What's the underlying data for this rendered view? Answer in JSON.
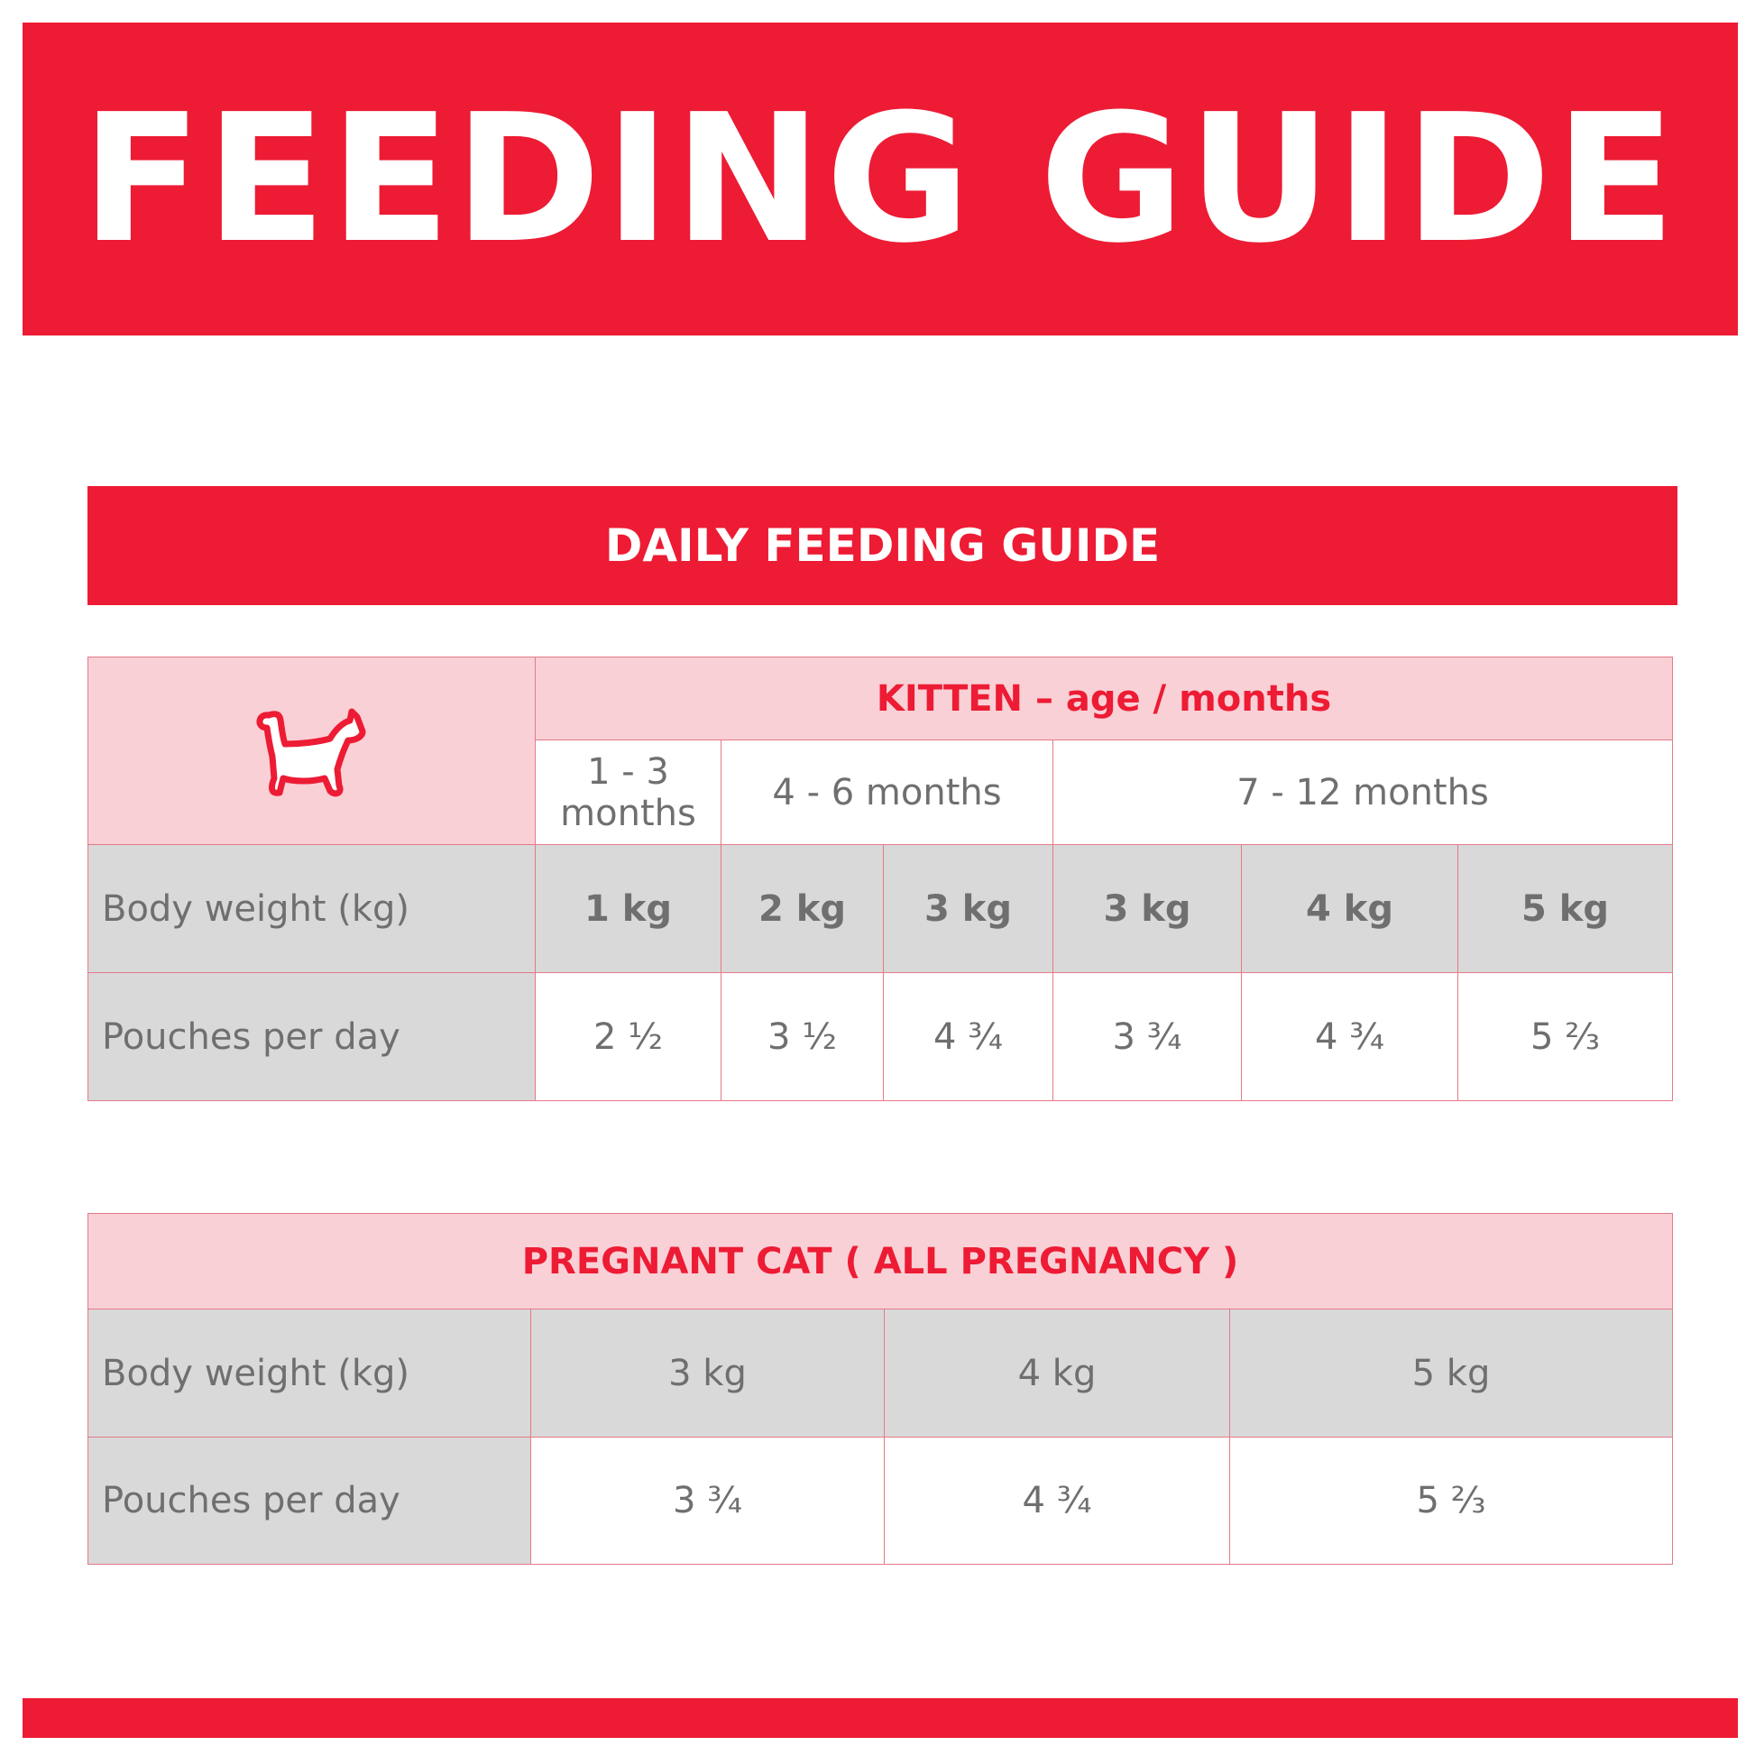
{
  "title": "FEEDING GUIDE",
  "subtitle": "DAILY FEEDING GUIDE",
  "colors": {
    "brand_red": "#ED1B34",
    "header_pink": "#F9D0D6",
    "row_grey": "#D9D9D9",
    "border": "#E57A88"
  },
  "kitten_table": {
    "icon": "cat-icon",
    "header": "KITTEN – age / months",
    "age_groups": [
      "1 - 3 months",
      "4 - 6 months",
      "7 - 12 months"
    ],
    "row_labels": [
      "Body weight (kg)",
      "Pouches per day"
    ],
    "weights": [
      "1 kg",
      "2 kg",
      "3 kg",
      "3 kg",
      "4 kg",
      "5 kg"
    ],
    "pouches": [
      "2 ½",
      "3 ½",
      "4 ¾",
      "3 ¾",
      "4 ¾",
      "5 ⅔"
    ]
  },
  "pregnant_table": {
    "header": "PREGNANT CAT ( ALL PREGNANCY )",
    "row_labels": [
      "Body weight (kg)",
      "Pouches per day"
    ],
    "weights": [
      "3 kg",
      "4 kg",
      "5 kg"
    ],
    "pouches": [
      "3 ¾",
      "4 ¾",
      "5 ⅔"
    ]
  }
}
